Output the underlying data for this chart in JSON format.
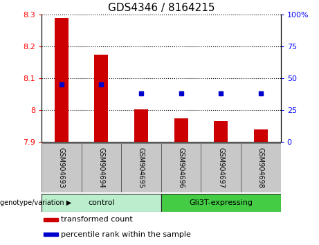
{
  "title": "GDS4346 / 8164215",
  "samples": [
    "GSM904693",
    "GSM904694",
    "GSM904695",
    "GSM904696",
    "GSM904697",
    "GSM904698"
  ],
  "bar_values": [
    8.29,
    8.175,
    8.003,
    7.975,
    7.965,
    7.94
  ],
  "bar_bottom": 7.9,
  "percentile_values": [
    45,
    45,
    38,
    38,
    38,
    38
  ],
  "ylim_left": [
    7.9,
    8.3
  ],
  "ylim_right": [
    0,
    100
  ],
  "yticks_left": [
    7.9,
    8.0,
    8.1,
    8.2,
    8.3
  ],
  "ytick_labels_left": [
    "7.9",
    "8",
    "8.1",
    "8.2",
    "8.3"
  ],
  "yticks_right": [
    0,
    25,
    50,
    75,
    100
  ],
  "ytick_labels_right": [
    "0",
    "25",
    "50",
    "75",
    "100%"
  ],
  "bar_color": "#cc0000",
  "dot_color": "#0000cc",
  "bg_color": "#ffffff",
  "sample_box_color": "#c8c8c8",
  "sample_box_edge": "#555555",
  "groups": [
    {
      "label": "control",
      "start": 0,
      "end": 3,
      "color": "#bbeecc"
    },
    {
      "label": "Gli3T-expressing",
      "start": 3,
      "end": 6,
      "color": "#44cc44"
    }
  ],
  "group_box_edge": "#222222",
  "group_label": "genotype/variation",
  "group_arrow": "▶",
  "legend_bar": "transformed count",
  "legend_dot": "percentile rank within the sample",
  "title_fontsize": 11,
  "tick_fontsize": 8,
  "sample_fontsize": 7,
  "group_fontsize": 8,
  "legend_fontsize": 8
}
